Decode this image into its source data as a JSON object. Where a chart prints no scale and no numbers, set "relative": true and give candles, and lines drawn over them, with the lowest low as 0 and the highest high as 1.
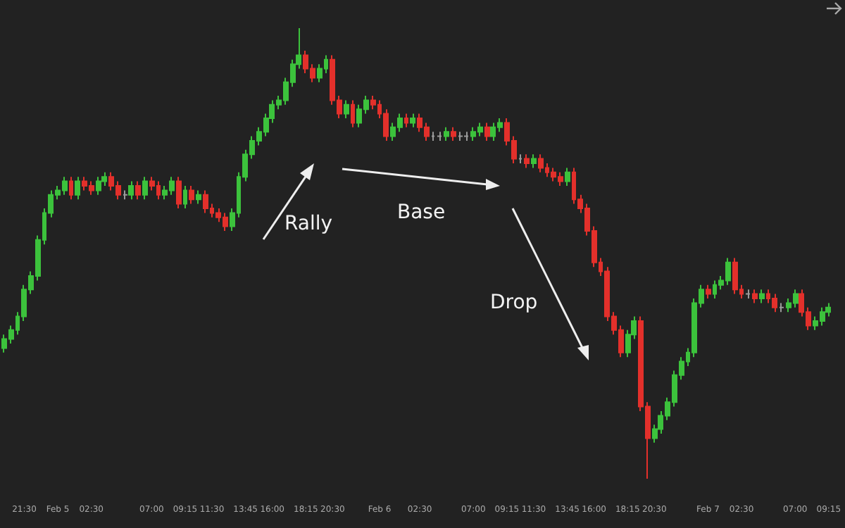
{
  "chart_data": {
    "type": "candlestick",
    "relative": true,
    "categories": [
      null,
      null,
      null,
      "21:30",
      null,
      null,
      null,
      null,
      "Feb 5",
      null,
      null,
      null,
      null,
      "02:30",
      null,
      null,
      null,
      null,
      null,
      null,
      null,
      null,
      "07:00",
      null,
      null,
      null,
      null,
      "09:15",
      null,
      null,
      null,
      "11:30",
      null,
      null,
      null,
      null,
      "13:45",
      null,
      null,
      null,
      "16:00",
      null,
      null,
      null,
      null,
      "18:15",
      null,
      null,
      null,
      "20:30",
      null,
      null,
      null,
      null,
      null,
      null,
      "Feb 6",
      null,
      null,
      null,
      null,
      null,
      "02:30",
      null,
      null,
      null,
      null,
      null,
      null,
      null,
      "07:00",
      null,
      null,
      null,
      null,
      "09:15",
      null,
      null,
      null,
      "11:30",
      null,
      null,
      null,
      null,
      "13:45",
      null,
      null,
      null,
      "16:00",
      null,
      null,
      null,
      null,
      "18:15",
      null,
      null,
      null,
      "20:30",
      null,
      null,
      null,
      null,
      null,
      null,
      null,
      "Feb 7",
      null,
      null,
      null,
      null,
      "02:30",
      null,
      null,
      null,
      null,
      null,
      null,
      null,
      "07:00",
      null,
      null,
      null,
      null,
      "09:15"
    ],
    "ohlc": [
      [
        0.29,
        0.32,
        0.28,
        0.31
      ],
      [
        0.31,
        0.34,
        0.3,
        0.33
      ],
      [
        0.33,
        0.37,
        0.32,
        0.36
      ],
      [
        0.36,
        0.43,
        0.35,
        0.42
      ],
      [
        0.42,
        0.46,
        0.41,
        0.45
      ],
      [
        0.45,
        0.54,
        0.44,
        0.53
      ],
      [
        0.53,
        0.6,
        0.52,
        0.59
      ],
      [
        0.59,
        0.64,
        0.58,
        0.63
      ],
      [
        0.63,
        0.65,
        0.62,
        0.64
      ],
      [
        0.64,
        0.67,
        0.63,
        0.66
      ],
      [
        0.66,
        0.67,
        0.62,
        0.63
      ],
      [
        0.63,
        0.67,
        0.62,
        0.66
      ],
      [
        0.66,
        0.67,
        0.64,
        0.65
      ],
      [
        0.65,
        0.66,
        0.63,
        0.64
      ],
      [
        0.64,
        0.67,
        0.63,
        0.66
      ],
      [
        0.66,
        0.68,
        0.65,
        0.67
      ],
      [
        0.67,
        0.68,
        0.64,
        0.65
      ],
      [
        0.65,
        0.66,
        0.62,
        0.63
      ],
      [
        0.63,
        0.64,
        0.62,
        0.63
      ],
      [
        0.63,
        0.66,
        0.62,
        0.65
      ],
      [
        0.65,
        0.66,
        0.62,
        0.63
      ],
      [
        0.63,
        0.67,
        0.62,
        0.66
      ],
      [
        0.66,
        0.67,
        0.64,
        0.65
      ],
      [
        0.65,
        0.66,
        0.62,
        0.63
      ],
      [
        0.63,
        0.65,
        0.62,
        0.64
      ],
      [
        0.64,
        0.67,
        0.63,
        0.66
      ],
      [
        0.66,
        0.67,
        0.6,
        0.61
      ],
      [
        0.61,
        0.65,
        0.6,
        0.64
      ],
      [
        0.64,
        0.65,
        0.61,
        0.62
      ],
      [
        0.62,
        0.64,
        0.61,
        0.63
      ],
      [
        0.63,
        0.64,
        0.59,
        0.6
      ],
      [
        0.6,
        0.61,
        0.58,
        0.59
      ],
      [
        0.59,
        0.6,
        0.57,
        0.58
      ],
      [
        0.58,
        0.59,
        0.55,
        0.56
      ],
      [
        0.56,
        0.6,
        0.55,
        0.59
      ],
      [
        0.59,
        0.68,
        0.58,
        0.67
      ],
      [
        0.67,
        0.73,
        0.66,
        0.72
      ],
      [
        0.72,
        0.76,
        0.71,
        0.75
      ],
      [
        0.75,
        0.78,
        0.74,
        0.77
      ],
      [
        0.77,
        0.81,
        0.76,
        0.8
      ],
      [
        0.8,
        0.84,
        0.79,
        0.83
      ],
      [
        0.83,
        0.85,
        0.82,
        0.84
      ],
      [
        0.84,
        0.89,
        0.83,
        0.88
      ],
      [
        0.88,
        0.93,
        0.87,
        0.92
      ],
      [
        0.92,
        1.0,
        0.91,
        0.94
      ],
      [
        0.94,
        0.95,
        0.9,
        0.91
      ],
      [
        0.91,
        0.92,
        0.88,
        0.89
      ],
      [
        0.89,
        0.92,
        0.88,
        0.91
      ],
      [
        0.91,
        0.94,
        0.9,
        0.93
      ],
      [
        0.93,
        0.94,
        0.83,
        0.84
      ],
      [
        0.84,
        0.85,
        0.8,
        0.81
      ],
      [
        0.81,
        0.84,
        0.8,
        0.83
      ],
      [
        0.83,
        0.84,
        0.78,
        0.79
      ],
      [
        0.79,
        0.83,
        0.78,
        0.82
      ],
      [
        0.82,
        0.85,
        0.81,
        0.84
      ],
      [
        0.84,
        0.85,
        0.82,
        0.83
      ],
      [
        0.83,
        0.84,
        0.8,
        0.81
      ],
      [
        0.81,
        0.82,
        0.75,
        0.76
      ],
      [
        0.76,
        0.79,
        0.75,
        0.78
      ],
      [
        0.78,
        0.81,
        0.77,
        0.8
      ],
      [
        0.8,
        0.81,
        0.78,
        0.79
      ],
      [
        0.79,
        0.81,
        0.78,
        0.8
      ],
      [
        0.8,
        0.81,
        0.77,
        0.78
      ],
      [
        0.78,
        0.79,
        0.75,
        0.76
      ],
      [
        0.76,
        0.77,
        0.75,
        0.76
      ],
      [
        0.76,
        0.77,
        0.75,
        0.76
      ],
      [
        0.76,
        0.78,
        0.75,
        0.77
      ],
      [
        0.77,
        0.78,
        0.75,
        0.76
      ],
      [
        0.76,
        0.77,
        0.75,
        0.76
      ],
      [
        0.76,
        0.77,
        0.75,
        0.76
      ],
      [
        0.76,
        0.78,
        0.75,
        0.77
      ],
      [
        0.77,
        0.79,
        0.76,
        0.78
      ],
      [
        0.78,
        0.79,
        0.75,
        0.76
      ],
      [
        0.76,
        0.79,
        0.75,
        0.78
      ],
      [
        0.78,
        0.8,
        0.77,
        0.79
      ],
      [
        0.79,
        0.8,
        0.74,
        0.75
      ],
      [
        0.75,
        0.76,
        0.7,
        0.71
      ],
      [
        0.71,
        0.72,
        0.7,
        0.71
      ],
      [
        0.71,
        0.72,
        0.69,
        0.7
      ],
      [
        0.7,
        0.72,
        0.69,
        0.71
      ],
      [
        0.71,
        0.72,
        0.68,
        0.69
      ],
      [
        0.69,
        0.7,
        0.67,
        0.68
      ],
      [
        0.68,
        0.69,
        0.66,
        0.67
      ],
      [
        0.67,
        0.68,
        0.65,
        0.66
      ],
      [
        0.66,
        0.69,
        0.65,
        0.68
      ],
      [
        0.68,
        0.69,
        0.61,
        0.62
      ],
      [
        0.62,
        0.63,
        0.59,
        0.6
      ],
      [
        0.6,
        0.61,
        0.54,
        0.55
      ],
      [
        0.55,
        0.56,
        0.47,
        0.48
      ],
      [
        0.48,
        0.49,
        0.45,
        0.46
      ],
      [
        0.46,
        0.47,
        0.35,
        0.36
      ],
      [
        0.36,
        0.37,
        0.32,
        0.33
      ],
      [
        0.33,
        0.34,
        0.27,
        0.28
      ],
      [
        0.28,
        0.33,
        0.27,
        0.32
      ],
      [
        0.32,
        0.36,
        0.31,
        0.35
      ],
      [
        0.35,
        0.36,
        0.15,
        0.16
      ],
      [
        0.16,
        0.17,
        0.0,
        0.09
      ],
      [
        0.09,
        0.12,
        0.08,
        0.11
      ],
      [
        0.11,
        0.15,
        0.1,
        0.14
      ],
      [
        0.14,
        0.18,
        0.13,
        0.17
      ],
      [
        0.17,
        0.24,
        0.16,
        0.23
      ],
      [
        0.23,
        0.27,
        0.22,
        0.26
      ],
      [
        0.26,
        0.29,
        0.25,
        0.28
      ],
      [
        0.28,
        0.4,
        0.27,
        0.39
      ],
      [
        0.39,
        0.43,
        0.38,
        0.42
      ],
      [
        0.42,
        0.43,
        0.4,
        0.41
      ],
      [
        0.41,
        0.44,
        0.4,
        0.43
      ],
      [
        0.43,
        0.45,
        0.42,
        0.44
      ],
      [
        0.44,
        0.49,
        0.43,
        0.48
      ],
      [
        0.48,
        0.49,
        0.41,
        0.42
      ],
      [
        0.42,
        0.43,
        0.4,
        0.41
      ],
      [
        0.41,
        0.42,
        0.4,
        0.41
      ],
      [
        0.41,
        0.42,
        0.39,
        0.4
      ],
      [
        0.4,
        0.42,
        0.39,
        0.41
      ],
      [
        0.41,
        0.42,
        0.39,
        0.4
      ],
      [
        0.4,
        0.41,
        0.37,
        0.38
      ],
      [
        0.38,
        0.39,
        0.37,
        0.38
      ],
      [
        0.38,
        0.4,
        0.37,
        0.39
      ],
      [
        0.39,
        0.42,
        0.38,
        0.41
      ],
      [
        0.41,
        0.42,
        0.36,
        0.37
      ],
      [
        0.37,
        0.38,
        0.33,
        0.34
      ],
      [
        0.34,
        0.36,
        0.33,
        0.35
      ],
      [
        0.35,
        0.38,
        0.34,
        0.37
      ],
      [
        0.37,
        0.39,
        0.36,
        0.38
      ]
    ],
    "annotations": [
      "Rally",
      "Base",
      "Drop"
    ]
  }
}
